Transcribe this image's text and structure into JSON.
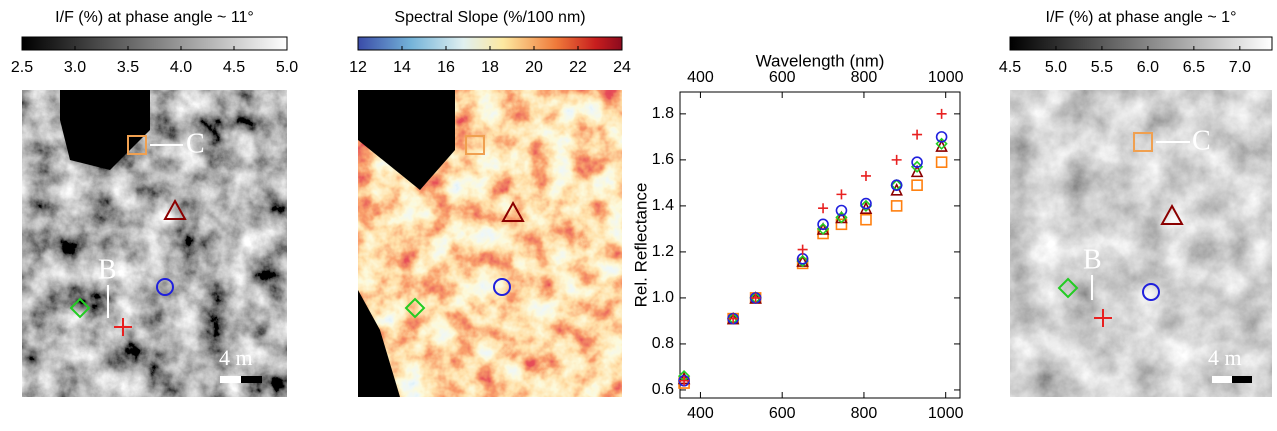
{
  "chart_data": [
    {
      "type": "image",
      "title": "I/F (%) at phase angle ~ 11°",
      "colormap": "gray",
      "xlim": [
        2.5,
        5.0
      ],
      "xticks": [
        2.5,
        {
          "value": 3,
          "label": "3.0"
        },
        3.5,
        {
          "value": 4,
          "label": "4.0"
        },
        4.5,
        {
          "value": 5,
          "label": "5.0"
        }
      ],
      "annotations": [
        "C",
        "B",
        "4 m"
      ]
    },
    {
      "type": "image",
      "title": "Spectral Slope (%/100 nm)",
      "colormap": "spectral",
      "xlim": [
        12,
        24
      ],
      "xticks": [
        12,
        14,
        16,
        18,
        20,
        22,
        24
      ]
    },
    {
      "type": "scatter",
      "xlabel": "Wavelength (nm)",
      "ylabel": "Rel. Reflectance",
      "x": [
        360,
        480,
        535,
        650,
        700,
        745,
        805,
        880,
        930,
        990
      ],
      "xlim": [
        350,
        1035
      ],
      "xticks": [
        400,
        600,
        800,
        1000
      ],
      "ylim": [
        0.565,
        1.895
      ],
      "yticks": [
        0.6,
        0.8,
        {
          "value": 1,
          "label": "1.0"
        },
        1.2,
        1.4,
        1.6,
        1.8
      ],
      "series": [
        {
          "color": "#ff7f0e",
          "marker": "square",
          "values": [
            0.63,
            0.91,
            1.0,
            1.15,
            1.28,
            1.32,
            1.34,
            1.4,
            1.49,
            1.59
          ]
        },
        {
          "color": "#8b0000",
          "marker": "triangle",
          "values": [
            0.65,
            0.91,
            1.0,
            1.16,
            1.3,
            1.35,
            1.39,
            1.47,
            1.55,
            1.66
          ]
        },
        {
          "color": "#22cc22",
          "marker": "diamond",
          "values": [
            0.66,
            0.91,
            1.0,
            1.16,
            1.3,
            1.35,
            1.4,
            1.49,
            1.57,
            1.67
          ]
        },
        {
          "color": "#1f1fdd",
          "marker": "circle",
          "values": [
            0.64,
            0.91,
            1.0,
            1.17,
            1.32,
            1.38,
            1.41,
            1.49,
            1.59,
            1.7
          ]
        },
        {
          "color": "#e82020",
          "marker": "plus",
          "values": [
            0.64,
            0.91,
            1.0,
            1.21,
            1.39,
            1.45,
            1.53,
            1.6,
            1.71,
            1.8
          ]
        }
      ]
    },
    {
      "type": "image",
      "title": "I/F (%) at phase angle ~ 1°",
      "colormap": "gray",
      "xlim": [
        4.5,
        7.35
      ],
      "xticks": [
        4.5,
        {
          "value": 5,
          "label": "5.0"
        },
        5.5,
        {
          "value": 6,
          "label": "6.0"
        },
        6.5,
        {
          "value": 7,
          "label": "7.0"
        }
      ],
      "annotations": [
        "C",
        "B",
        "4 m"
      ]
    }
  ]
}
